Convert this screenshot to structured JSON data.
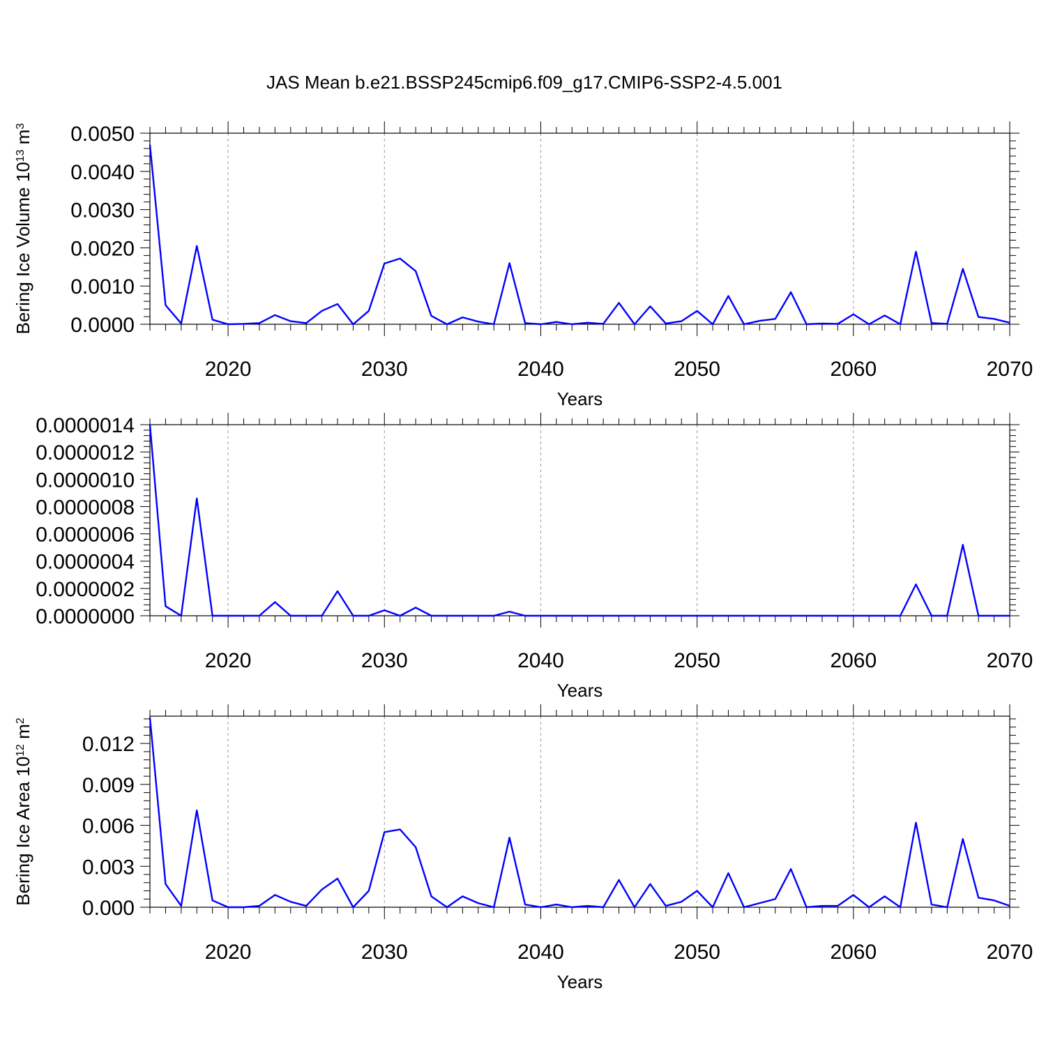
{
  "figure": {
    "title": "JAS Mean b.e21.BSSP245cmip6.f09_g17.CMIP6-SSP2-4.5.001",
    "line_color": "#0000ff",
    "grid_color": "#999999"
  },
  "chart_data": [
    {
      "type": "line",
      "xlabel": "Years",
      "ylabel": "Bering Ice Volume 10",
      "ylabel_sup": "13",
      "ylabel_unit": " m",
      "ylabel_unit_sup": "3",
      "xlim": [
        2015,
        2070
      ],
      "ylim": [
        0,
        0.005
      ],
      "x_ticks": [
        2020,
        2030,
        2040,
        2050,
        2060,
        2070
      ],
      "y_ticks": [
        "0.0000",
        "0.0010",
        "0.0020",
        "0.0030",
        "0.0040",
        "0.0050"
      ],
      "grid": "vertical dashed at major x ticks",
      "x": [
        2015,
        2016,
        2017,
        2018,
        2019,
        2020,
        2021,
        2022,
        2023,
        2024,
        2025,
        2026,
        2027,
        2028,
        2029,
        2030,
        2031,
        2032,
        2033,
        2034,
        2035,
        2036,
        2037,
        2038,
        2039,
        2040,
        2041,
        2042,
        2043,
        2044,
        2045,
        2046,
        2047,
        2048,
        2049,
        2050,
        2051,
        2052,
        2053,
        2054,
        2055,
        2056,
        2057,
        2058,
        2059,
        2060,
        2061,
        2062,
        2063,
        2064,
        2065,
        2066,
        2067,
        2068,
        2069,
        2070
      ],
      "series": [
        {
          "values": [
            0.0047,
            0.0005,
            2e-05,
            0.00205,
            0.00012,
            0.0,
            1e-05,
            3e-05,
            0.00024,
            8e-05,
            3e-05,
            0.00035,
            0.00053,
            0.0,
            0.00035,
            0.00159,
            0.00172,
            0.00139,
            0.00022,
            0.0,
            0.00018,
            7e-05,
            0.0,
            0.0016,
            3e-05,
            0.0,
            6e-05,
            0.0,
            4e-05,
            1e-05,
            0.00056,
            0.0,
            0.00047,
            2e-05,
            8e-05,
            0.00035,
            0.0,
            0.00074,
            0.0,
            9e-05,
            0.00014,
            0.00084,
            0.0,
            2e-05,
            1e-05,
            0.00026,
            0.0,
            0.00023,
            0.0,
            0.0019,
            3e-05,
            1e-05,
            0.00145,
            0.00019,
            0.00014,
            4e-05
          ]
        }
      ]
    },
    {
      "type": "line",
      "xlabel": "Years",
      "ylabel": "",
      "xlim": [
        2015,
        2070
      ],
      "ylim": [
        0,
        1.4e-06
      ],
      "x_ticks": [
        2020,
        2030,
        2040,
        2050,
        2060,
        2070
      ],
      "y_ticks": [
        "0.0000000",
        "0.0000002",
        "0.0000004",
        "0.0000006",
        "0.0000008",
        "0.0000010",
        "0.0000012",
        "0.0000014"
      ],
      "grid": "vertical dashed at major x ticks",
      "x": [
        2015,
        2016,
        2017,
        2018,
        2019,
        2020,
        2021,
        2022,
        2023,
        2024,
        2025,
        2026,
        2027,
        2028,
        2029,
        2030,
        2031,
        2032,
        2033,
        2034,
        2035,
        2036,
        2037,
        2038,
        2039,
        2040,
        2041,
        2042,
        2043,
        2044,
        2045,
        2046,
        2047,
        2048,
        2049,
        2050,
        2051,
        2052,
        2053,
        2054,
        2055,
        2056,
        2057,
        2058,
        2059,
        2060,
        2061,
        2062,
        2063,
        2064,
        2065,
        2066,
        2067,
        2068,
        2069,
        2070
      ],
      "series": [
        {
          "values": [
            1.4e-06,
            7e-08,
            0.0,
            8.6e-07,
            0.0,
            0.0,
            0.0,
            0.0,
            1e-07,
            0.0,
            0.0,
            0.0,
            1.8e-07,
            0.0,
            0.0,
            4e-08,
            0.0,
            6e-08,
            0.0,
            0.0,
            0.0,
            0.0,
            0.0,
            3e-08,
            0.0,
            0.0,
            0.0,
            0.0,
            0.0,
            0.0,
            0.0,
            0.0,
            0.0,
            0.0,
            0.0,
            0.0,
            0.0,
            0.0,
            0.0,
            0.0,
            0.0,
            0.0,
            0.0,
            0.0,
            0.0,
            0.0,
            0.0,
            0.0,
            0.0,
            2.3e-07,
            0.0,
            0.0,
            5.2e-07,
            0.0,
            0.0,
            0.0
          ]
        }
      ]
    },
    {
      "type": "line",
      "xlabel": "Years",
      "ylabel": "Bering Ice Area 10",
      "ylabel_sup": "12",
      "ylabel_unit": " m",
      "ylabel_unit_sup": "2",
      "xlim": [
        2015,
        2070
      ],
      "ylim": [
        0,
        0.014
      ],
      "x_ticks": [
        2020,
        2030,
        2040,
        2050,
        2060,
        2070
      ],
      "y_ticks": [
        "0.000",
        "0.003",
        "0.006",
        "0.009",
        "0.012"
      ],
      "grid": "vertical dashed at major x ticks",
      "x": [
        2015,
        2016,
        2017,
        2018,
        2019,
        2020,
        2021,
        2022,
        2023,
        2024,
        2025,
        2026,
        2027,
        2028,
        2029,
        2030,
        2031,
        2032,
        2033,
        2034,
        2035,
        2036,
        2037,
        2038,
        2039,
        2040,
        2041,
        2042,
        2043,
        2044,
        2045,
        2046,
        2047,
        2048,
        2049,
        2050,
        2051,
        2052,
        2053,
        2054,
        2055,
        2056,
        2057,
        2058,
        2059,
        2060,
        2061,
        2062,
        2063,
        2064,
        2065,
        2066,
        2067,
        2068,
        2069,
        2070
      ],
      "series": [
        {
          "values": [
            0.0139,
            0.0017,
            0.0001,
            0.0071,
            0.0005,
            0.0,
            0.0,
            0.0001,
            0.0009,
            0.0004,
            0.0001,
            0.0013,
            0.0021,
            0.0,
            0.0012,
            0.0055,
            0.0057,
            0.0044,
            0.0008,
            0.0,
            0.0008,
            0.0003,
            0.0,
            0.0051,
            0.0002,
            0.0,
            0.0002,
            0.0,
            0.0001,
            0.0,
            0.002,
            0.0,
            0.0017,
            0.0001,
            0.0004,
            0.0012,
            0.0,
            0.0025,
            0.0,
            0.0003,
            0.0006,
            0.0028,
            0.0,
            0.0001,
            0.0001,
            0.0009,
            0.0,
            0.0008,
            0.0,
            0.0062,
            0.0002,
            0.0,
            0.005,
            0.0007,
            0.0005,
            0.0001
          ]
        }
      ]
    }
  ]
}
